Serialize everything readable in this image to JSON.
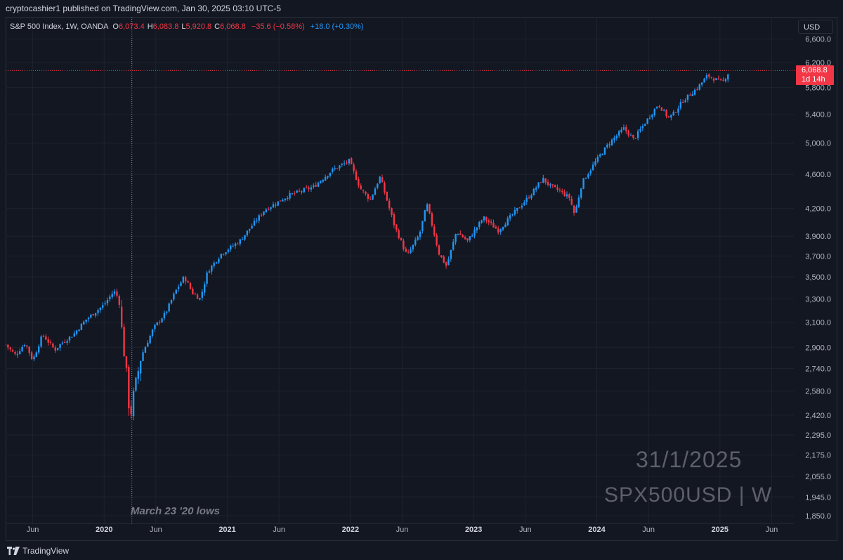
{
  "header": {
    "publish_info": "cryptocashier1 published on TradingView.com, Jan 30, 2025 03:10 UTC-5"
  },
  "legend": {
    "title": "S&P 500 Index, 1W, OANDA",
    "o_label": "O",
    "o_value": "6,073.4",
    "h_label": "H",
    "h_value": "6,083.8",
    "l_label": "L",
    "l_value": "5,920.8",
    "c_label": "C",
    "c_value": "6,068.8",
    "change": "−35.6 (−0.58%)",
    "spread": "+18.0 (+0.30%)"
  },
  "currency_button": "USD",
  "price_badge": {
    "price": "6,068.8",
    "countdown": "1d 14h"
  },
  "watermark": {
    "date": "31/1/2025",
    "symbol": "SPX500USD | W"
  },
  "annotation": "March 23 '20 lows",
  "footer": {
    "brand": "TradingView"
  },
  "colors": {
    "up": "#2196f3",
    "down": "#f23645",
    "background": "#131722",
    "grid": "#1e222d",
    "price_line": "#f23645"
  },
  "chart_data": {
    "type": "candlestick",
    "title": "S&P 500 Index, 1W, OANDA",
    "timeframe": "1W",
    "y_scale": "log",
    "ylim": [
      1850,
      6600
    ],
    "y_ticks": [
      "6,600.0",
      "6,200.0",
      "5,800.0",
      "5,400.0",
      "5,000.0",
      "4,600.0",
      "4,200.0",
      "3,900.0",
      "3,700.0",
      "3,500.0",
      "3,300.0",
      "3,100.0",
      "2,900.0",
      "2,740.0",
      "2,580.0",
      "2,420.0",
      "2,295.0",
      "2,175.0",
      "2,055.0",
      "1,945.0",
      "1,850.0"
    ],
    "x_ticks": [
      {
        "label": "Jun",
        "major": false,
        "t": 2019.42
      },
      {
        "label": "2020",
        "major": true,
        "t": 2020.0
      },
      {
        "label": "Jun",
        "major": false,
        "t": 2020.42
      },
      {
        "label": "2021",
        "major": true,
        "t": 2021.0
      },
      {
        "label": "Jun",
        "major": false,
        "t": 2021.42
      },
      {
        "label": "2022",
        "major": true,
        "t": 2022.0
      },
      {
        "label": "Jun",
        "major": false,
        "t": 2022.42
      },
      {
        "label": "2023",
        "major": true,
        "t": 2023.0
      },
      {
        "label": "Jun",
        "major": false,
        "t": 2023.42
      },
      {
        "label": "2024",
        "major": true,
        "t": 2024.0
      },
      {
        "label": "Jun",
        "major": false,
        "t": 2024.42
      },
      {
        "label": "2025",
        "major": true,
        "t": 2025.0
      },
      {
        "label": "Jun",
        "major": false,
        "t": 2025.42
      }
    ],
    "xlim": [
      2019.2,
      2025.6
    ],
    "current_price": 6068.8,
    "vertical_marker_t": 2020.225,
    "anchors": [
      [
        2019.2,
        2920
      ],
      [
        2019.28,
        2840
      ],
      [
        2019.36,
        2935
      ],
      [
        2019.42,
        2800
      ],
      [
        2019.5,
        3000
      ],
      [
        2019.6,
        2880
      ],
      [
        2019.65,
        2930
      ],
      [
        2019.75,
        3000
      ],
      [
        2019.85,
        3120
      ],
      [
        2020.0,
        3250
      ],
      [
        2020.08,
        3370
      ],
      [
        2020.12,
        3300
      ],
      [
        2020.15,
        2960
      ],
      [
        2020.18,
        2710
      ],
      [
        2020.21,
        2390
      ],
      [
        2020.24,
        2560
      ],
      [
        2020.3,
        2830
      ],
      [
        2020.4,
        3050
      ],
      [
        2020.5,
        3180
      ],
      [
        2020.58,
        3370
      ],
      [
        2020.65,
        3500
      ],
      [
        2020.72,
        3350
      ],
      [
        2020.78,
        3300
      ],
      [
        2020.84,
        3550
      ],
      [
        2020.95,
        3720
      ],
      [
        2021.1,
        3850
      ],
      [
        2021.3,
        4180
      ],
      [
        2021.5,
        4350
      ],
      [
        2021.7,
        4450
      ],
      [
        2021.85,
        4650
      ],
      [
        2021.99,
        4770
      ],
      [
        2022.08,
        4430
      ],
      [
        2022.16,
        4300
      ],
      [
        2022.24,
        4570
      ],
      [
        2022.36,
        4000
      ],
      [
        2022.46,
        3700
      ],
      [
        2022.56,
        3920
      ],
      [
        2022.62,
        4250
      ],
      [
        2022.72,
        3720
      ],
      [
        2022.78,
        3600
      ],
      [
        2022.86,
        3950
      ],
      [
        2022.95,
        3850
      ],
      [
        2023.08,
        4100
      ],
      [
        2023.2,
        3960
      ],
      [
        2023.32,
        4140
      ],
      [
        2023.46,
        4350
      ],
      [
        2023.56,
        4550
      ],
      [
        2023.62,
        4460
      ],
      [
        2023.7,
        4400
      ],
      [
        2023.78,
        4320
      ],
      [
        2023.82,
        4130
      ],
      [
        2023.88,
        4500
      ],
      [
        2023.99,
        4760
      ],
      [
        2024.1,
        5000
      ],
      [
        2024.22,
        5200
      ],
      [
        2024.3,
        5050
      ],
      [
        2024.4,
        5300
      ],
      [
        2024.5,
        5550
      ],
      [
        2024.58,
        5350
      ],
      [
        2024.62,
        5400
      ],
      [
        2024.7,
        5600
      ],
      [
        2024.82,
        5800
      ],
      [
        2024.9,
        5990
      ],
      [
        2024.96,
        5930
      ],
      [
        2025.02,
        5880
      ],
      [
        2025.08,
        6068.8
      ]
    ]
  }
}
